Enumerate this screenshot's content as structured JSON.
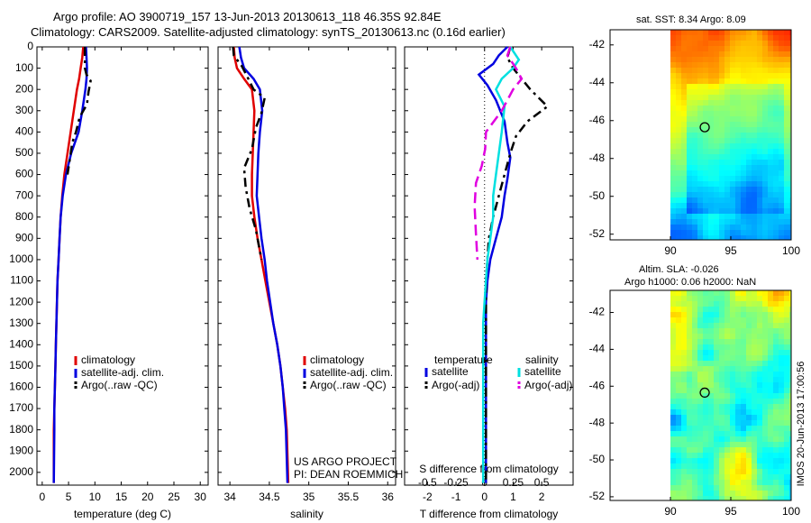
{
  "header": {
    "line1": "Argo profile: AO 3900719_157 13-Jun-2013 20130613_118 46.35S 92.84E",
    "line2": "Climatology: CARS2009. Satellite-adjusted climatology: synTS_20130613.nc (0.16d earlier)"
  },
  "map_sst": {
    "title": "sat. SST: 8.34 Argo: 8.09",
    "x_ticks": [
      "90",
      "95",
      "100"
    ],
    "y_ticks": [
      "-42",
      "-44",
      "-46",
      "-48",
      "-50",
      "-52"
    ],
    "xlim": [
      85,
      100
    ],
    "ylim": [
      -52.3,
      -41.2
    ],
    "float_lon": 92.84,
    "float_lat": -46.35
  },
  "map_sla": {
    "title1": "Altim. SLA: -0.026",
    "title2": "Argo h1000: 0.06 h2000: NaN",
    "x_ticks": [
      "90",
      "95",
      "100"
    ],
    "y_ticks": [
      "-42",
      "-44",
      "-46",
      "-48",
      "-50",
      "-52"
    ],
    "xlim": [
      85,
      100
    ],
    "ylim": [
      -52.2,
      -40.8
    ],
    "float_lon": 92.84,
    "float_lat": -46.35
  },
  "stamp": "IMOS 20-Jun-2013 17:00:56",
  "chart_data": [
    {
      "type": "line",
      "xlabel": "temperature (deg C)",
      "ylabel": "",
      "xlim": [
        -1,
        31.5
      ],
      "ylim": [
        2060,
        0
      ],
      "xticks": [
        "0",
        "5",
        "10",
        "15",
        "20",
        "25",
        "30"
      ],
      "yticks": [
        "0",
        "100",
        "200",
        "300",
        "400",
        "500",
        "600",
        "700",
        "800",
        "900",
        "1000",
        "1100",
        "1200",
        "1300",
        "1400",
        "1500",
        "1600",
        "1700",
        "1800",
        "1900",
        "2000"
      ],
      "legend": [
        "climatology",
        "satellite-adj. clim.",
        "Argo(..raw -QC)"
      ],
      "colors": [
        "#e00000",
        "#0000e0",
        "#000000"
      ],
      "series": [
        {
          "name": "climatology",
          "x": [
            7.8,
            7.6,
            7.3,
            7.0,
            6.6,
            6.0,
            5.4,
            4.8,
            4.2,
            3.8,
            3.5,
            3.3,
            3.1,
            2.9,
            2.8,
            2.7,
            2.6,
            2.5,
            2.4,
            2.3,
            2.2,
            2.2
          ],
          "y": [
            0,
            50,
            100,
            150,
            200,
            300,
            400,
            500,
            600,
            700,
            800,
            900,
            1000,
            1100,
            1200,
            1300,
            1400,
            1500,
            1600,
            1700,
            1800,
            2050
          ]
        },
        {
          "name": "satellite-adj. clim.",
          "x": [
            8.3,
            8.4,
            8.5,
            8.4,
            8.2,
            7.6,
            6.9,
            5.5,
            4.5,
            3.9,
            3.5,
            3.3,
            3.1,
            2.9,
            2.8,
            2.7,
            2.6,
            2.5,
            2.4,
            2.3,
            2.3,
            2.2
          ],
          "y": [
            0,
            50,
            100,
            150,
            200,
            300,
            400,
            500,
            600,
            700,
            800,
            900,
            1000,
            1100,
            1200,
            1300,
            1400,
            1500,
            1600,
            1700,
            1800,
            2050
          ]
        },
        {
          "name": "Argo(..raw -QC)",
          "x": [
            8.1,
            8.1,
            8.1,
            8.4,
            9.2,
            8.8,
            8.5,
            7.1,
            6.4,
            5.7,
            5.3,
            4.8
          ],
          "y": [
            0,
            50,
            100,
            130,
            160,
            210,
            270,
            330,
            400,
            450,
            520,
            600
          ]
        }
      ],
      "annotation": []
    },
    {
      "type": "line",
      "xlabel": "salinity",
      "ylabel": "",
      "xlim": [
        33.85,
        36.1
      ],
      "ylim": [
        2060,
        0
      ],
      "xticks": [
        "34",
        "34.5",
        "35",
        "35.5",
        "36"
      ],
      "legend": [
        "climatology",
        "satellite-adj. clim.",
        "Argo(..raw -QC)"
      ],
      "colors": [
        "#e00000",
        "#0000e0",
        "#000000"
      ],
      "series": [
        {
          "name": "climatology",
          "x": [
            34.05,
            34.06,
            34.09,
            34.18,
            34.28,
            34.31,
            34.3,
            34.29,
            34.28,
            34.28,
            34.31,
            34.35,
            34.4,
            34.45,
            34.5,
            34.55,
            34.6,
            34.64,
            34.67,
            34.7,
            34.72,
            34.74
          ],
          "y": [
            0,
            50,
            100,
            150,
            200,
            300,
            400,
            500,
            600,
            700,
            800,
            900,
            1000,
            1100,
            1200,
            1300,
            1400,
            1500,
            1600,
            1700,
            1800,
            2050
          ]
        },
        {
          "name": "satellite-adj. clim.",
          "x": [
            34.12,
            34.14,
            34.18,
            34.3,
            34.38,
            34.41,
            34.38,
            34.36,
            34.35,
            34.34,
            34.37,
            34.4,
            34.44,
            34.47,
            34.51,
            34.55,
            34.6,
            34.64,
            34.67,
            34.69,
            34.71,
            34.73
          ],
          "y": [
            0,
            50,
            100,
            150,
            200,
            300,
            400,
            500,
            600,
            700,
            800,
            900,
            1000,
            1100,
            1200,
            1300,
            1400,
            1500,
            1600,
            1700,
            1800,
            2050
          ]
        },
        {
          "name": "Argo(..raw -QC)",
          "x": [
            34.04,
            34.05,
            34.15,
            34.22,
            34.3,
            34.44,
            34.4,
            34.33,
            34.28,
            34.18,
            34.2,
            34.25,
            34.33,
            34.38,
            34.4
          ],
          "y": [
            0,
            40,
            90,
            140,
            200,
            240,
            310,
            380,
            480,
            570,
            660,
            760,
            860,
            960,
            1000
          ]
        }
      ],
      "annotation": [
        "US ARGO PROJECT",
        "PI: DEAN ROEMMICH"
      ]
    },
    {
      "type": "line",
      "xlabel": "T difference from climatology",
      "xlabel_top": "S difference from climatology",
      "xlim": [
        -2.8,
        3.1
      ],
      "ylim": [
        2060,
        0
      ],
      "xticks": [
        "-2",
        "-1",
        "0",
        "1",
        "2"
      ],
      "xticks_top": [
        "-0.5",
        "-0.25",
        "0",
        "0.25",
        "0.5"
      ],
      "legend_headers": [
        "temperature",
        "salinity"
      ],
      "legend": [
        "satellite",
        "Argo(-adj)",
        "satellite",
        "Argo(-adj)"
      ],
      "colors": [
        "#0000e0",
        "#000000",
        "#00e0e0",
        "#e000e0"
      ],
      "series": [
        {
          "name": "satellite",
          "x": [
            0.8,
            0.5,
            0.3,
            -0.2,
            0.1,
            0.4,
            0.7,
            0.8,
            0.9,
            0.8,
            0.7,
            0.6,
            0.4,
            0.2,
            0.1,
            0.05,
            0.05,
            0.05,
            0.05,
            0.05,
            0.05,
            0.05
          ],
          "y": [
            0,
            40,
            80,
            130,
            180,
            250,
            350,
            450,
            520,
            620,
            700,
            800,
            900,
            1000,
            1100,
            1200,
            1300,
            1400,
            1500,
            1600,
            1700,
            2050
          ]
        },
        {
          "name": "Argo(-adj)",
          "x": [
            0.9,
            0.8,
            1.0,
            1.3,
            1.6,
            2.2,
            1.5,
            1.1,
            0.9,
            0.7,
            0.5,
            0.3,
            0.15,
            0.1,
            0.05,
            0.05,
            0.05,
            0.05,
            0.05,
            0.05,
            0.05,
            0.05
          ],
          "y": [
            0,
            50,
            100,
            150,
            200,
            280,
            350,
            420,
            500,
            600,
            700,
            800,
            900,
            1000,
            1100,
            1200,
            1300,
            1400,
            1500,
            1600,
            1700,
            2050
          ]
        },
        {
          "name": "satellite",
          "x": [
            0.9,
            1.2,
            1.0,
            0.6,
            0.4,
            0.7,
            0.6,
            0.5,
            0.4,
            0.3,
            0.3,
            0.2,
            0.1,
            0.05,
            0.0,
            -0.05,
            -0.05,
            -0.05,
            -0.05,
            -0.05,
            -0.05
          ],
          "y": [
            0,
            60,
            100,
            150,
            200,
            280,
            400,
            500,
            600,
            700,
            800,
            900,
            1000,
            1100,
            1200,
            1300,
            1400,
            1500,
            1600,
            1700,
            2050
          ]
        },
        {
          "name": "Argo(-adj)",
          "x": [
            0.9,
            0.8,
            1.1,
            1.3,
            1.0,
            0.6,
            0.05,
            0.02,
            -0.1,
            -0.3,
            -0.35,
            -0.3,
            -0.25
          ],
          "y": [
            0,
            40,
            100,
            150,
            200,
            300,
            400,
            480,
            560,
            640,
            750,
            880,
            1000
          ]
        }
      ]
    }
  ]
}
